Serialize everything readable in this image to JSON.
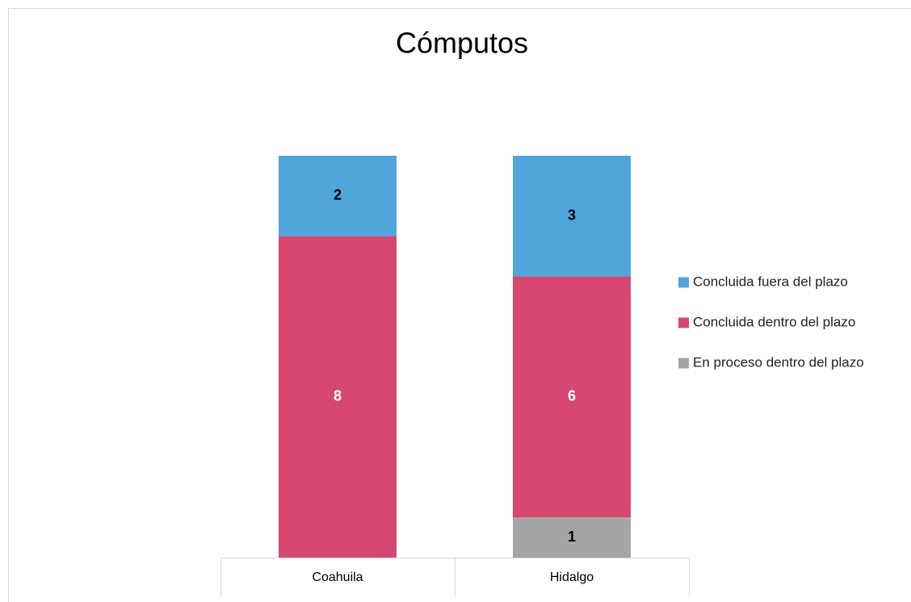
{
  "chart_data": {
    "type": "stacked_bar",
    "title": "Cómputos",
    "categories": [
      "Coahuila",
      "Hidalgo"
    ],
    "series": [
      {
        "name": "Concluida fuera del plazo",
        "color": "#4fa5da",
        "values": [
          2,
          3
        ]
      },
      {
        "name": "Concluida dentro del plazo",
        "color": "#d64871",
        "values": [
          8,
          6
        ]
      },
      {
        "name": "En proceso dentro del plazo",
        "color": "#a5a5a5",
        "values": [
          null,
          1
        ]
      }
    ],
    "legend": "right"
  }
}
